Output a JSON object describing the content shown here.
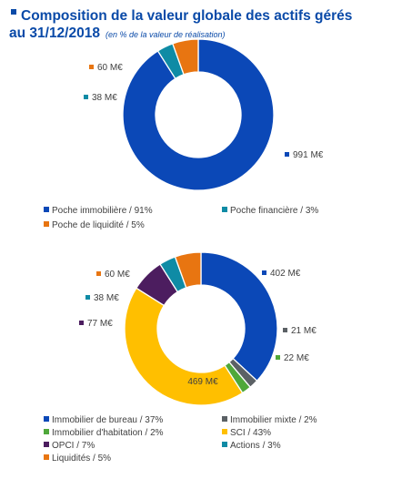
{
  "title": {
    "line1": "Composition de la valeur globale des actifs gérés",
    "line2": "au 31/12/2018",
    "subtitle": "(en % de la valeur de réalisation)"
  },
  "chart_data": [
    {
      "type": "pie",
      "donut": true,
      "legend_placement": "bottom",
      "slices": [
        {
          "name": "Poche immobilière / 91%",
          "label": "991 M€",
          "value": 991,
          "color": "#0b48b7"
        },
        {
          "name": "Poche financière / 3%",
          "label": "38 M€",
          "value": 38,
          "color": "#0f8ba5"
        },
        {
          "name": "Poche de liquidité / 5%",
          "label": "60 M€",
          "value": 60,
          "color": "#e87511"
        }
      ]
    },
    {
      "type": "pie",
      "donut": true,
      "legend_placement": "bottom",
      "slices": [
        {
          "name": "Immobilier de bureau / 37%",
          "label": "402 M€",
          "value": 402,
          "color": "#0b48b7"
        },
        {
          "name": "Immobilier mixte / 2%",
          "label": "21 M€",
          "value": 21,
          "color": "#5b6165"
        },
        {
          "name": "Immobilier d'habitation / 2%",
          "label": "22 M€",
          "value": 22,
          "color": "#4fa83a"
        },
        {
          "name": "SCI  / 43%",
          "label": "469 M€",
          "value": 469,
          "color": "#ffbf00"
        },
        {
          "name": "OPCI / 7%",
          "label": "77 M€",
          "value": 77,
          "color": "#4c1d5f"
        },
        {
          "name": "Actions  / 3%",
          "label": "38 M€",
          "value": 38,
          "color": "#0f8ba5"
        },
        {
          "name": "Liquidités / 5%",
          "label": "60 M€",
          "value": 60,
          "color": "#e87511"
        }
      ]
    }
  ]
}
